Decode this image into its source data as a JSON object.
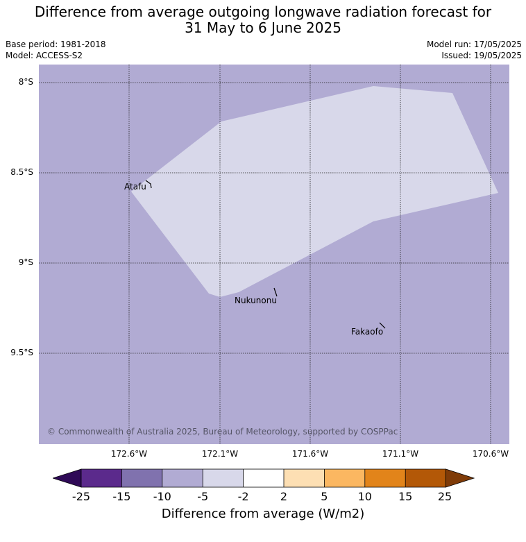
{
  "title_line1": "Difference from average outgoing longwave radiation forecast for",
  "title_line2": "31 May to 6 June 2025",
  "base_period": "Base period: 1981-2018",
  "model": "Model: ACCESS-S2",
  "model_run": "Model run: 17/05/2025",
  "issued": "Issued: 19/05/2025",
  "map": {
    "lat_labels": [
      "8°S",
      "8.5°S",
      "9°S",
      "9.5°S"
    ],
    "lon_labels": [
      "172.6°W",
      "172.1°W",
      "171.6°W",
      "171.1°W",
      "170.6°W"
    ],
    "places": [
      "Atafu",
      "Nukunonu",
      "Fakaofo"
    ],
    "copyright": "© Commonwealth of Australia 2025, Bureau of Meteorology, supported by COSPPac",
    "background_color": "#b1abd3",
    "region_color": "#d8d8ea"
  },
  "colorbar": {
    "ticks": [
      "-25",
      "-15",
      "-10",
      "-5",
      "-2",
      "2",
      "5",
      "10",
      "15",
      "25"
    ],
    "colors": [
      "#2f0a57",
      "#5b2a8c",
      "#8072ae",
      "#b1abd3",
      "#d8d8ea",
      "#ffffff",
      "#fddfb3",
      "#fbb761",
      "#e2841a",
      "#b35807",
      "#7f3b08"
    ],
    "label": "Difference from average (W/m2)"
  }
}
